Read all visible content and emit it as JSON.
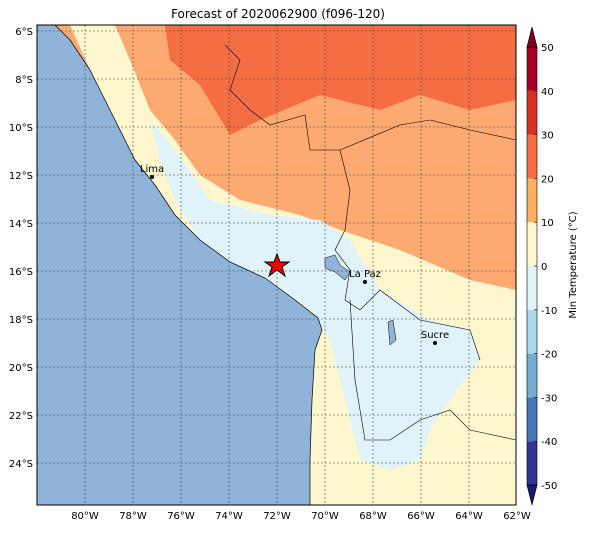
{
  "title": "Forecast of 2020062900 (f096-120)",
  "map": {
    "lon_labels": [
      "80°W",
      "78°W",
      "76°W",
      "74°W",
      "72°W",
      "70°W",
      "68°W",
      "66°W",
      "64°W",
      "62°W"
    ],
    "lat_labels": [
      "6°S",
      "8°S",
      "10°S",
      "12°S",
      "14°S",
      "16°S",
      "18°S",
      "20°S",
      "22°S",
      "24°S"
    ],
    "cities": [
      {
        "name": "Lima"
      },
      {
        "name": "La Paz"
      },
      {
        "name": "Sucre"
      }
    ]
  },
  "colorbar": {
    "label": "Min Temperature (°C)",
    "range": [
      -50,
      50
    ],
    "ticks": [
      50,
      40,
      30,
      20,
      10,
      0,
      -10,
      -20,
      -30,
      -40,
      -50
    ],
    "colors": [
      "#313695",
      "#4575b4",
      "#74add1",
      "#abd9e9",
      "#e0f3f8",
      "#fef7cd",
      "#fdae61",
      "#f46d43",
      "#d73027",
      "#a50026"
    ]
  }
}
